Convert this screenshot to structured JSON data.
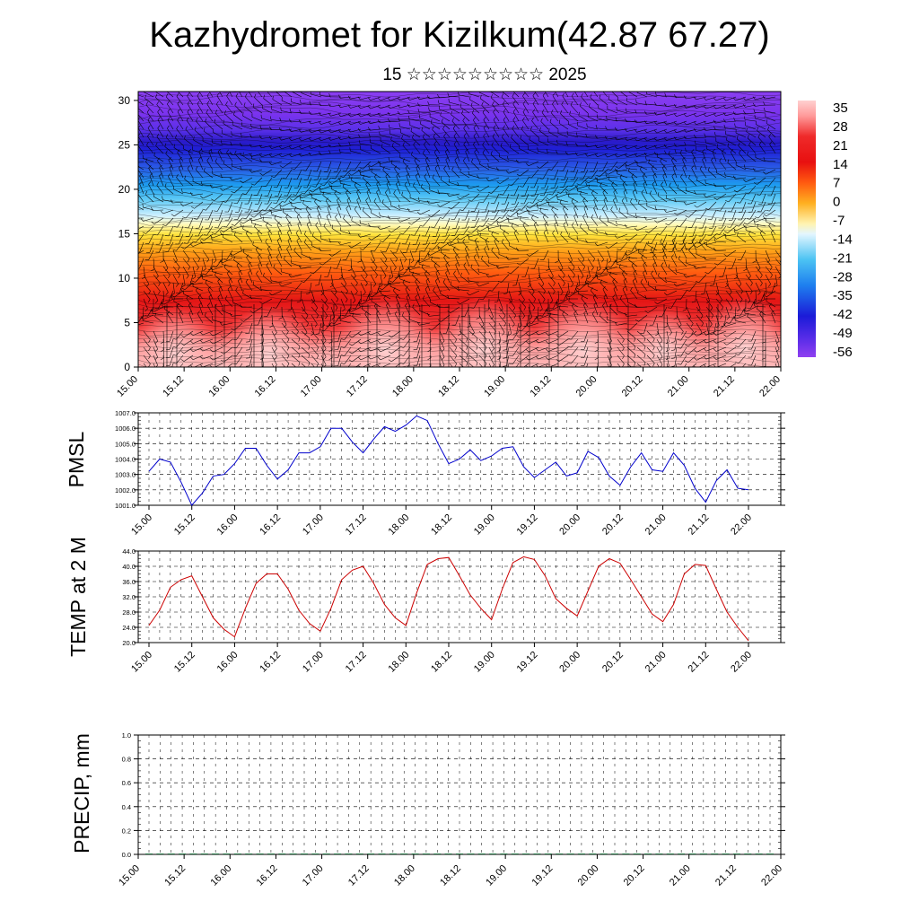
{
  "header": {
    "title": "Kazhydromet for Kizilkum(42.87 67.27)",
    "subtitle": "15 ☆☆☆☆☆☆☆☆☆ 2025"
  },
  "chart_data": [
    {
      "type": "heatmap",
      "name": "cross-section",
      "x_ticks": [
        "15.00",
        "15.12",
        "16.00",
        "16.12",
        "17.00",
        "17.12",
        "18.00",
        "18.12",
        "19.00",
        "19.12",
        "20.00",
        "20.12",
        "21.00",
        "21.12",
        "22.00"
      ],
      "y_ticks": [
        "0",
        "5",
        "10",
        "15",
        "20",
        "25",
        "30"
      ],
      "ylim": [
        0,
        31
      ],
      "colorbar_labels": [
        "35",
        "28",
        "21",
        "14",
        "7",
        "0",
        "-7",
        "-14",
        "-21",
        "-28",
        "-35",
        "-42",
        "-49",
        "-56"
      ],
      "overlay": "wind barbs"
    },
    {
      "type": "line",
      "name": "PMSL",
      "ylabel": "PMSL",
      "color": "#0000cc",
      "ylim": [
        1001.0,
        1007.0
      ],
      "y_ticks": [
        "1001.0",
        "1002.0",
        "1003.0",
        "1004.0",
        "1005.0",
        "1006.0",
        "1007.0"
      ],
      "x_ticks": [
        "15.00",
        "15.12",
        "16.00",
        "16.12",
        "17.00",
        "17.12",
        "18.00",
        "18.12",
        "19.00",
        "19.12",
        "20.00",
        "20.12",
        "21.00",
        "21.12",
        "22.00"
      ],
      "values": [
        1003.2,
        1004.0,
        1003.8,
        1002.5,
        1001.0,
        1001.8,
        1002.9,
        1003.0,
        1003.7,
        1004.7,
        1004.7,
        1003.6,
        1002.7,
        1003.3,
        1004.4,
        1004.4,
        1004.8,
        1006.0,
        1006.0,
        1005.1,
        1004.4,
        1005.3,
        1006.1,
        1005.8,
        1006.2,
        1006.8,
        1006.5,
        1005.0,
        1003.7,
        1004.0,
        1004.6,
        1003.9,
        1004.2,
        1004.7,
        1004.8,
        1003.5,
        1002.8,
        1003.3,
        1003.8,
        1002.9,
        1003.1,
        1004.5,
        1004.1,
        1002.9,
        1002.3,
        1003.5,
        1004.4,
        1003.3,
        1003.2,
        1004.4,
        1003.6,
        1002.1,
        1001.2,
        1002.6,
        1003.3,
        1002.1,
        1002.0
      ]
    },
    {
      "type": "line",
      "name": "TEMP at 2 M",
      "ylabel": "TEMP at 2 M",
      "color": "#cc0000",
      "ylim": [
        20.0,
        44.0
      ],
      "y_ticks": [
        "20.0",
        "24.0",
        "28.0",
        "32.0",
        "36.0",
        "40.0",
        "44.0"
      ],
      "x_ticks": [
        "15.00",
        "15.12",
        "16.00",
        "16.12",
        "17.00",
        "17.12",
        "18.00",
        "18.12",
        "19.00",
        "19.12",
        "20.00",
        "20.12",
        "21.00",
        "21.12",
        "22.00"
      ],
      "values": [
        24.5,
        28.5,
        34.5,
        36.5,
        37.5,
        32.0,
        26.5,
        23.5,
        21.5,
        29.0,
        35.5,
        38.0,
        38.0,
        34.0,
        28.5,
        25.0,
        23.0,
        29.0,
        36.5,
        39.0,
        40.0,
        35.5,
        30.0,
        26.5,
        24.5,
        33.0,
        40.5,
        42.0,
        42.3,
        37.5,
        32.5,
        29.0,
        26.0,
        34.0,
        41.0,
        42.5,
        41.8,
        37.5,
        31.5,
        29.0,
        27.0,
        33.5,
        40.0,
        42.0,
        40.8,
        36.5,
        32.0,
        27.5,
        25.5,
        30.0,
        38.0,
        40.5,
        40.2,
        34.0,
        28.0,
        24.0,
        20.5
      ]
    },
    {
      "type": "bar",
      "name": "PRECIP, mm",
      "ylabel": "PRECIP, mm",
      "ylim": [
        0.0,
        1.0
      ],
      "y_ticks": [
        "0.0",
        "0.2",
        "0.4",
        "0.6",
        "0.8",
        "1.0"
      ],
      "x_ticks": [
        "15.00",
        "15.12",
        "16.00",
        "16.12",
        "17.00",
        "17.12",
        "18.00",
        "18.12",
        "19.00",
        "19.12",
        "20.00",
        "20.12",
        "21.00",
        "21.12",
        "22.00"
      ],
      "values": [
        0,
        0,
        0,
        0,
        0,
        0,
        0,
        0,
        0,
        0,
        0,
        0,
        0,
        0,
        0,
        0,
        0,
        0,
        0,
        0,
        0,
        0,
        0,
        0,
        0,
        0,
        0,
        0,
        0,
        0,
        0,
        0,
        0,
        0,
        0,
        0,
        0,
        0,
        0,
        0,
        0,
        0,
        0,
        0,
        0,
        0,
        0,
        0,
        0,
        0,
        0,
        0,
        0,
        0,
        0,
        0,
        0
      ]
    }
  ]
}
